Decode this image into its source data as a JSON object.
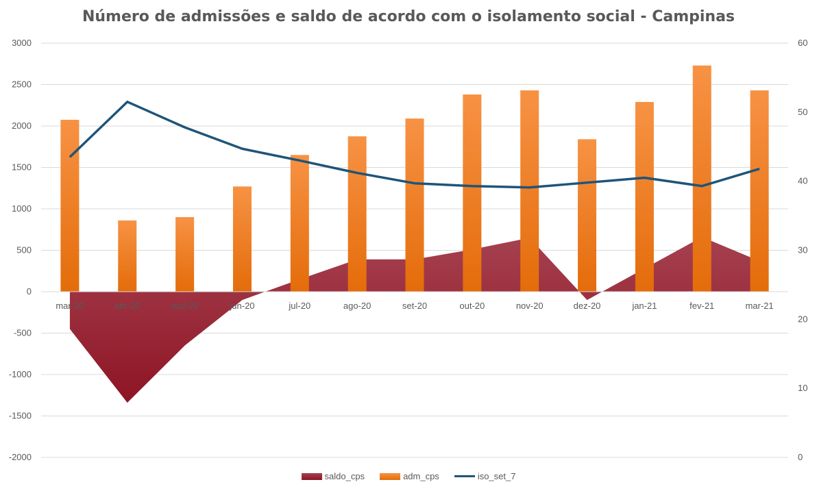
{
  "chart_data": {
    "type": "bar",
    "title": "Número de admissões e saldo de acordo com o isolamento social - Campinas",
    "categories": [
      "mar-20",
      "abr-20",
      "mai-20",
      "jun-20",
      "jul-20",
      "ago-20",
      "set-20",
      "out-20",
      "nov-20",
      "dez-20",
      "jan-21",
      "fev-21",
      "mar-21"
    ],
    "series": [
      {
        "name": "saldo_cps",
        "type": "area",
        "axis": "left",
        "color": "#9b1c2c",
        "values": [
          -450,
          -1340,
          -650,
          -100,
          150,
          390,
          390,
          510,
          650,
          -100,
          280,
          660,
          370
        ]
      },
      {
        "name": "adm_cps",
        "type": "bar",
        "axis": "left",
        "color": "#f77f16",
        "values": [
          2075,
          860,
          900,
          1270,
          1650,
          1875,
          2090,
          2380,
          2430,
          1840,
          2290,
          2730,
          2430
        ]
      },
      {
        "name": "iso_set_7",
        "type": "line",
        "axis": "right",
        "color": "#1f5479",
        "values": [
          43.5,
          51.5,
          47.8,
          44.7,
          43.0,
          41.2,
          39.7,
          39.3,
          39.1,
          39.8,
          40.5,
          39.3,
          41.8
        ]
      }
    ],
    "y_left": {
      "min": -2000,
      "max": 3000,
      "ticks": [
        3000,
        2500,
        2000,
        1500,
        1000,
        500,
        0,
        -500,
        -1000,
        -1500,
        -2000
      ]
    },
    "y_right": {
      "min": 0,
      "max": 60,
      "ticks": [
        60,
        50,
        40,
        30,
        20,
        10,
        0
      ]
    },
    "grid": true,
    "legend_position": "bottom"
  }
}
